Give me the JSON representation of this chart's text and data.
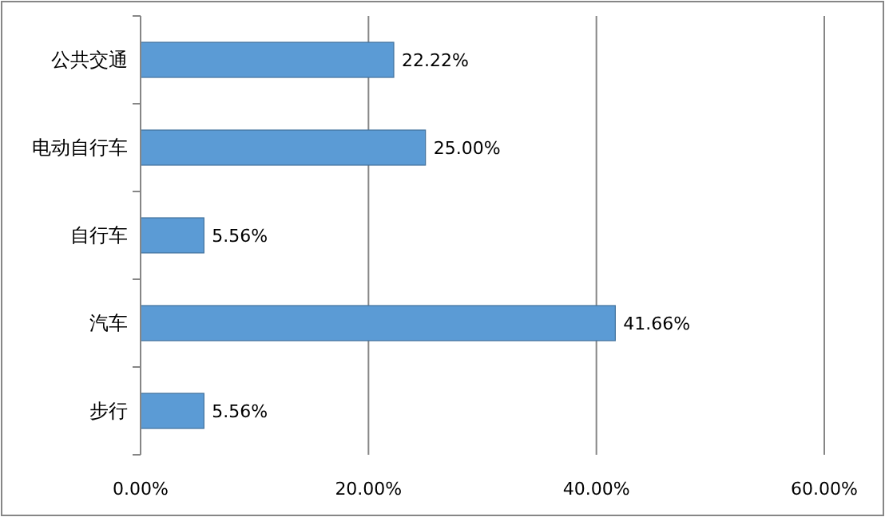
{
  "chart_data": {
    "type": "bar",
    "orientation": "horizontal",
    "categories": [
      "公共交通",
      "电动自行车",
      "自行车",
      "汽车",
      "步行"
    ],
    "values": [
      22.22,
      25.0,
      5.56,
      41.66,
      5.56
    ],
    "value_labels": [
      "22.22%",
      "25.00%",
      "5.56%",
      "41.66%",
      "5.56%"
    ],
    "color": "#5b9bd5",
    "xlim": [
      0,
      60
    ],
    "xticks": [
      {
        "value": 0,
        "label": "0.00%"
      },
      {
        "value": 20,
        "label": "20.00%"
      },
      {
        "value": 40,
        "label": "40.00%"
      },
      {
        "value": 60,
        "label": "60.00%"
      }
    ],
    "grid": "x"
  }
}
